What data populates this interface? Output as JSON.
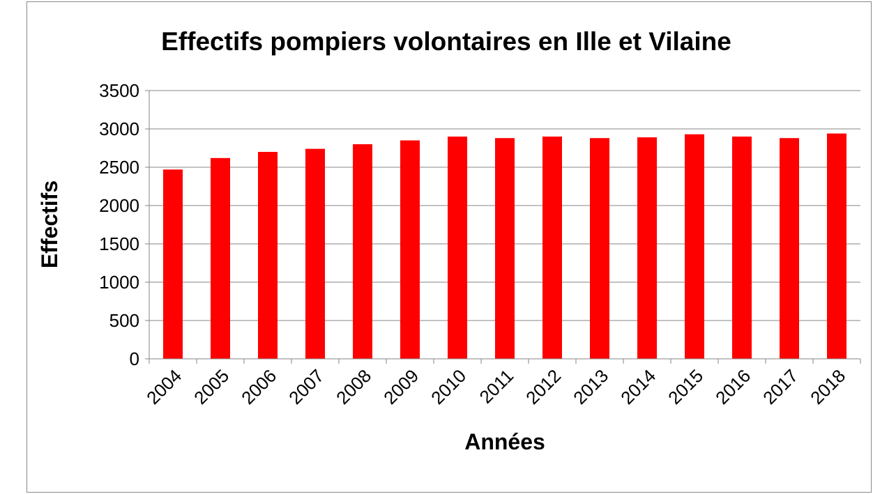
{
  "chart_data": {
    "type": "bar",
    "title": "Effectifs pompiers volontaires en Ille et Vilaine",
    "x_label": "Années",
    "y_label": "Effectifs",
    "categories": [
      "2004",
      "2005",
      "2006",
      "2007",
      "2008",
      "2009",
      "2010",
      "2011",
      "2012",
      "2013",
      "2014",
      "2015",
      "2016",
      "2017",
      "2018"
    ],
    "values": [
      2470,
      2620,
      2700,
      2740,
      2800,
      2850,
      2900,
      2880,
      2900,
      2880,
      2890,
      2930,
      2900,
      2880,
      2940
    ],
    "color": "#ff0000",
    "ylim": [
      0,
      3500
    ],
    "yticks": [
      0,
      500,
      1000,
      1500,
      2000,
      2500,
      3000,
      3500
    ],
    "grid": true
  }
}
